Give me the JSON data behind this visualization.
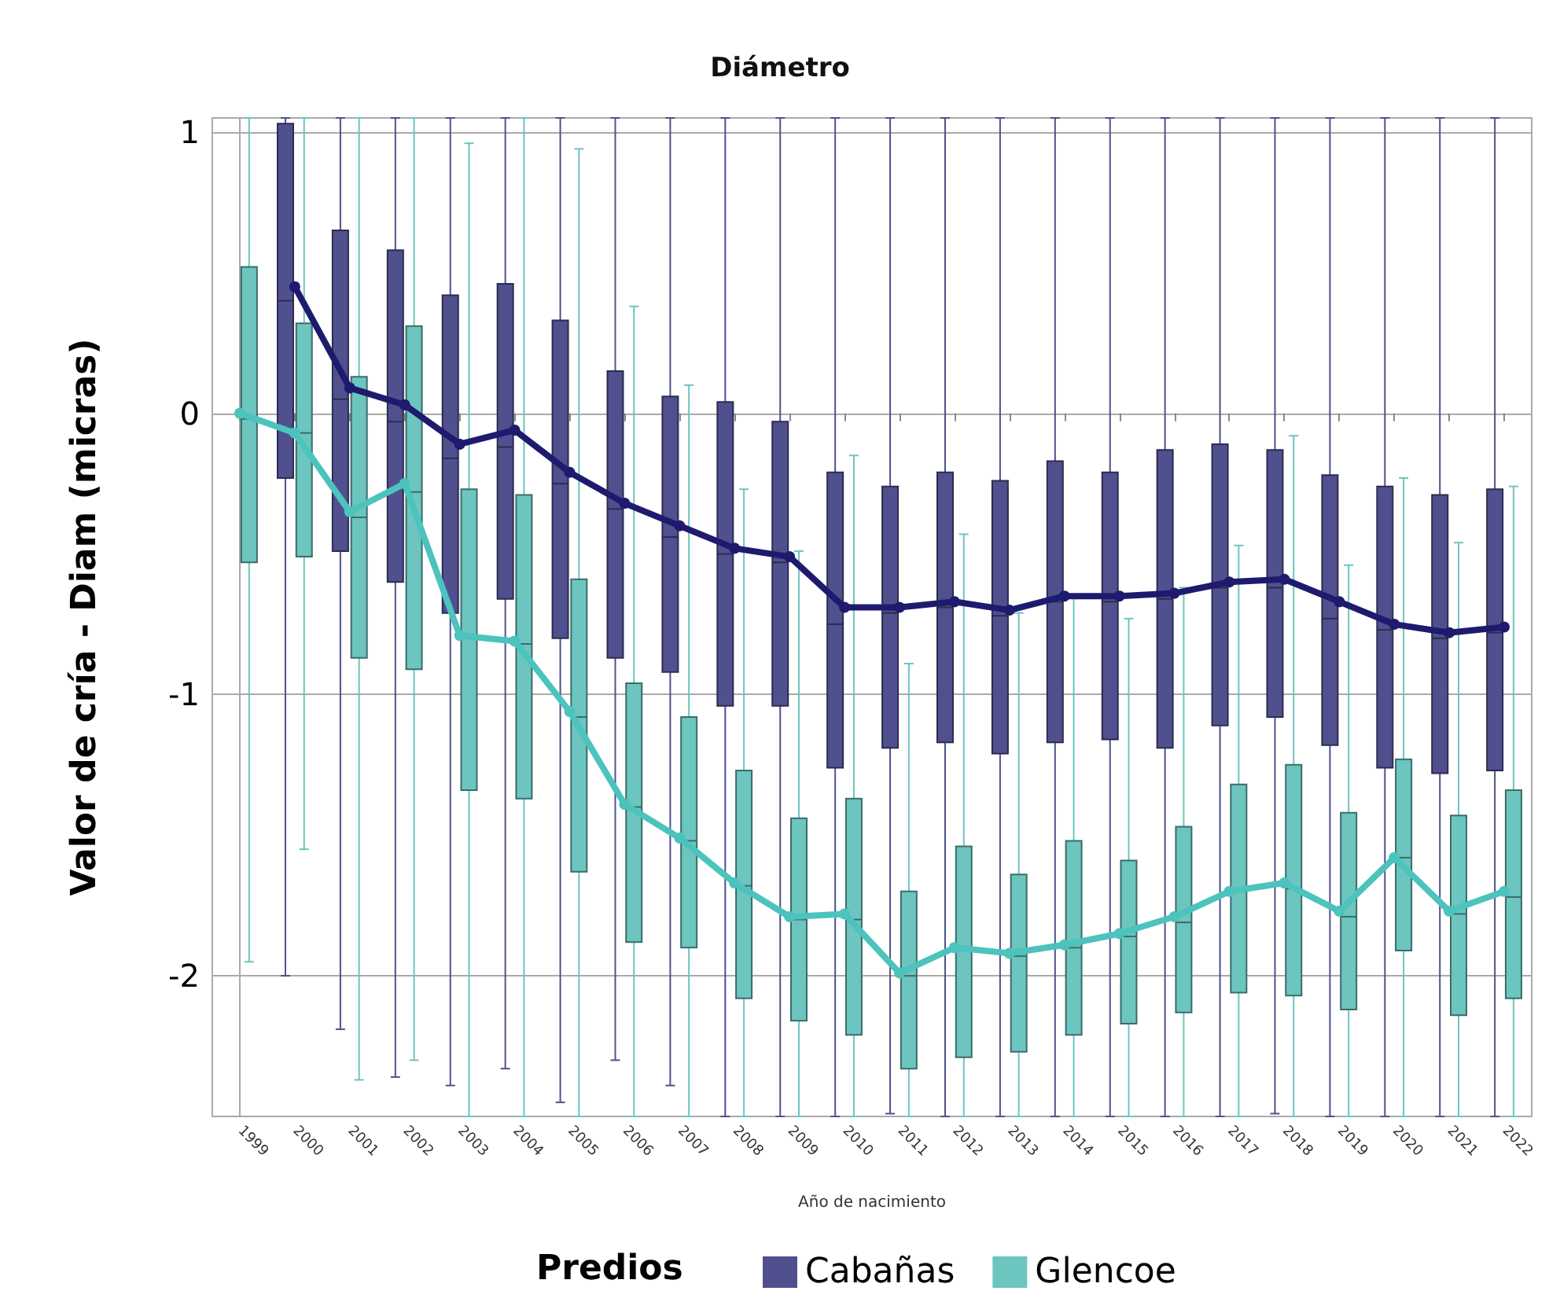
{
  "chart_data": {
    "type": "box",
    "title": "Diámetro",
    "xlabel": "Año de nacimiento",
    "ylabel": "Valor de cría - Diam (micras)",
    "legend_title": "Predios",
    "categories": [
      "1999",
      "2000",
      "2001",
      "2002",
      "2003",
      "2004",
      "2005",
      "2006",
      "2007",
      "2008",
      "2009",
      "2010",
      "2011",
      "2012",
      "2013",
      "2014",
      "2015",
      "2016",
      "2017",
      "2018",
      "2019",
      "2020",
      "2021",
      "2022"
    ],
    "ylim": [
      -2.5,
      1.05
    ],
    "yticks": [
      -2,
      -1,
      0,
      1
    ],
    "grid": "y",
    "legend": "bottom",
    "series": [
      {
        "name": "Cabañas",
        "type": "box",
        "color": "#50508f",
        "boxes": [
          null,
          {
            "low": -2.0,
            "q1": -0.23,
            "median": 0.4,
            "q3": 1.03,
            "high": 1.05
          },
          {
            "low": -2.19,
            "q1": -0.49,
            "median": 0.05,
            "q3": 0.65,
            "high": 1.05
          },
          {
            "low": -2.36,
            "q1": -0.6,
            "median": -0.03,
            "q3": 0.58,
            "high": 1.05
          },
          {
            "low": -2.39,
            "q1": -0.71,
            "median": -0.16,
            "q3": 0.42,
            "high": 1.05
          },
          {
            "low": -2.33,
            "q1": -0.66,
            "median": -0.12,
            "q3": 0.46,
            "high": 1.05
          },
          {
            "low": -2.45,
            "q1": -0.8,
            "median": -0.25,
            "q3": 0.33,
            "high": 1.05
          },
          {
            "low": -2.3,
            "q1": -0.87,
            "median": -0.34,
            "q3": 0.15,
            "high": 1.05
          },
          {
            "low": -2.39,
            "q1": -0.92,
            "median": -0.44,
            "q3": 0.06,
            "high": 1.05
          },
          {
            "low": -2.5,
            "q1": -1.04,
            "median": -0.5,
            "q3": 0.04,
            "high": 1.05
          },
          {
            "low": -2.5,
            "q1": -1.04,
            "median": -0.53,
            "q3": -0.03,
            "high": 1.05
          },
          {
            "low": -2.5,
            "q1": -1.26,
            "median": -0.75,
            "q3": -0.21,
            "high": 1.05
          },
          {
            "low": -2.49,
            "q1": -1.19,
            "median": -0.71,
            "q3": -0.26,
            "high": 1.05
          },
          {
            "low": -2.5,
            "q1": -1.17,
            "median": -0.69,
            "q3": -0.21,
            "high": 1.05
          },
          {
            "low": -2.5,
            "q1": -1.21,
            "median": -0.72,
            "q3": -0.24,
            "high": 1.05
          },
          {
            "low": -2.5,
            "q1": -1.17,
            "median": -0.67,
            "q3": -0.17,
            "high": 1.05
          },
          {
            "low": -2.5,
            "q1": -1.16,
            "median": -0.67,
            "q3": -0.21,
            "high": 1.05
          },
          {
            "low": -2.5,
            "q1": -1.19,
            "median": -0.66,
            "q3": -0.13,
            "high": 1.05
          },
          {
            "low": -2.5,
            "q1": -1.11,
            "median": -0.62,
            "q3": -0.11,
            "high": 1.05
          },
          {
            "low": -2.49,
            "q1": -1.08,
            "median": -0.62,
            "q3": -0.13,
            "high": 1.05
          },
          {
            "low": -2.5,
            "q1": -1.18,
            "median": -0.73,
            "q3": -0.22,
            "high": 1.05
          },
          {
            "low": -2.5,
            "q1": -1.26,
            "median": -0.77,
            "q3": -0.26,
            "high": 1.05
          },
          {
            "low": -2.5,
            "q1": -1.28,
            "median": -0.8,
            "q3": -0.29,
            "high": 1.05
          },
          {
            "low": -2.5,
            "q1": -1.27,
            "median": -0.78,
            "q3": -0.27,
            "high": 1.05
          }
        ]
      },
      {
        "name": "Glencoe",
        "type": "box",
        "color": "#6cc5bf",
        "boxes": [
          {
            "low": -1.95,
            "q1": -0.53,
            "median": -0.02,
            "q3": 0.52,
            "high": 1.05
          },
          {
            "low": -1.55,
            "q1": -0.51,
            "median": -0.07,
            "q3": 0.32,
            "high": 1.05
          },
          {
            "low": -2.37,
            "q1": -0.87,
            "median": -0.37,
            "q3": 0.13,
            "high": 1.05
          },
          {
            "low": -2.3,
            "q1": -0.91,
            "median": -0.28,
            "q3": 0.31,
            "high": 1.05
          },
          {
            "low": -2.5,
            "q1": -1.34,
            "median": -0.8,
            "q3": -0.27,
            "high": 0.96
          },
          {
            "low": -2.5,
            "q1": -1.37,
            "median": -0.82,
            "q3": -0.29,
            "high": 1.05
          },
          {
            "low": -2.5,
            "q1": -1.63,
            "median": -1.08,
            "q3": -0.59,
            "high": 0.94
          },
          {
            "low": -2.5,
            "q1": -1.88,
            "median": -1.4,
            "q3": -0.96,
            "high": 0.38
          },
          {
            "low": -2.5,
            "q1": -1.9,
            "median": -1.52,
            "q3": -1.08,
            "high": 0.1
          },
          {
            "low": -2.5,
            "q1": -2.08,
            "median": -1.68,
            "q3": -1.27,
            "high": -0.27
          },
          {
            "low": -2.5,
            "q1": -2.16,
            "median": -1.8,
            "q3": -1.44,
            "high": -0.49
          },
          {
            "low": -2.5,
            "q1": -2.21,
            "median": -1.8,
            "q3": -1.37,
            "high": -0.15
          },
          {
            "low": -2.5,
            "q1": -2.33,
            "median": -2.0,
            "q3": -1.7,
            "high": -0.89
          },
          {
            "low": -2.5,
            "q1": -2.29,
            "median": -1.91,
            "q3": -1.54,
            "high": -0.43
          },
          {
            "low": -2.5,
            "q1": -2.27,
            "median": -1.93,
            "q3": -1.64,
            "high": -0.71
          },
          {
            "low": -2.5,
            "q1": -2.21,
            "median": -1.9,
            "q3": -1.52,
            "high": -0.65
          },
          {
            "low": -2.5,
            "q1": -2.17,
            "median": -1.86,
            "q3": -1.59,
            "high": -0.73
          },
          {
            "low": -2.5,
            "q1": -2.13,
            "median": -1.81,
            "q3": -1.47,
            "high": -0.62
          },
          {
            "low": -2.5,
            "q1": -2.06,
            "median": -1.7,
            "q3": -1.32,
            "high": -0.47
          },
          {
            "low": -2.5,
            "q1": -2.07,
            "median": -1.69,
            "q3": -1.25,
            "high": -0.08
          },
          {
            "low": -2.5,
            "q1": -2.12,
            "median": -1.79,
            "q3": -1.42,
            "high": -0.54
          },
          {
            "low": -2.5,
            "q1": -1.91,
            "median": -1.58,
            "q3": -1.23,
            "high": -0.23
          },
          {
            "low": -2.5,
            "q1": -2.14,
            "median": -1.78,
            "q3": -1.43,
            "high": -0.46
          },
          {
            "low": -2.5,
            "q1": -2.08,
            "median": -1.72,
            "q3": -1.34,
            "high": -0.26
          }
        ]
      },
      {
        "type": "line",
        "color": "#1e1b6e",
        "marker": "circle",
        "values": [
          null,
          0.45,
          0.09,
          0.03,
          -0.11,
          -0.06,
          -0.21,
          -0.32,
          -0.4,
          -0.48,
          -0.51,
          -0.69,
          -0.69,
          -0.67,
          -0.7,
          -0.65,
          -0.65,
          -0.64,
          -0.6,
          -0.59,
          -0.67,
          -0.75,
          -0.78,
          -0.76
        ]
      },
      {
        "type": "line",
        "color": "#4cc3bd",
        "marker": "circle",
        "values": [
          0.0,
          -0.07,
          -0.35,
          -0.25,
          -0.79,
          -0.81,
          -1.06,
          -1.39,
          -1.51,
          -1.67,
          -1.79,
          -1.78,
          -1.99,
          -1.9,
          -1.92,
          -1.89,
          -1.85,
          -1.79,
          -1.7,
          -1.67,
          -1.77,
          -1.58,
          -1.77,
          -1.7
        ]
      }
    ]
  }
}
